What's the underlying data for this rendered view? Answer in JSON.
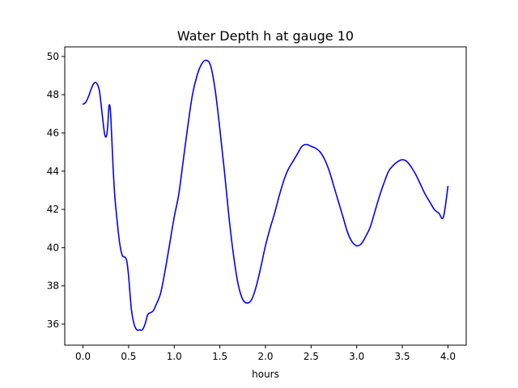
{
  "chart_data": {
    "type": "line",
    "title": "Water Depth h at gauge 10",
    "xlabel": "hours",
    "ylabel": "",
    "xlim": [
      -0.2,
      4.2
    ],
    "ylim": [
      34.9,
      50.5
    ],
    "xticks": [
      0.0,
      0.5,
      1.0,
      1.5,
      2.0,
      2.5,
      3.0,
      3.5,
      4.0
    ],
    "xtick_labels": [
      "0.0",
      "0.5",
      "1.0",
      "1.5",
      "2.0",
      "2.5",
      "3.0",
      "3.5",
      "4.0"
    ],
    "yticks": [
      36,
      38,
      40,
      42,
      44,
      46,
      48,
      50
    ],
    "ytick_labels": [
      "36",
      "38",
      "40",
      "42",
      "44",
      "46",
      "48",
      "50"
    ],
    "grid": false,
    "series": [
      {
        "color": "#0000ff",
        "x": [
          0.0,
          0.03,
          0.06,
          0.09,
          0.12,
          0.15,
          0.18,
          0.21,
          0.235,
          0.255,
          0.27,
          0.285,
          0.3,
          0.315,
          0.33,
          0.35,
          0.37,
          0.4,
          0.43,
          0.46,
          0.48,
          0.5,
          0.53,
          0.56,
          0.59,
          0.62,
          0.65,
          0.68,
          0.71,
          0.74,
          0.77,
          0.8,
          0.85,
          0.9,
          0.95,
          1.0,
          1.05,
          1.1,
          1.15,
          1.2,
          1.25,
          1.3,
          1.35,
          1.4,
          1.45,
          1.5,
          1.55,
          1.6,
          1.65,
          1.7,
          1.75,
          1.8,
          1.85,
          1.9,
          1.95,
          2.0,
          2.05,
          2.1,
          2.15,
          2.2,
          2.25,
          2.3,
          2.35,
          2.4,
          2.45,
          2.5,
          2.55,
          2.6,
          2.65,
          2.7,
          2.75,
          2.8,
          2.85,
          2.9,
          2.95,
          3.0,
          3.05,
          3.1,
          3.15,
          3.2,
          3.25,
          3.3,
          3.35,
          3.4,
          3.45,
          3.5,
          3.55,
          3.6,
          3.65,
          3.7,
          3.75,
          3.8,
          3.85,
          3.9,
          3.95,
          4.0
        ],
        "y": [
          47.5,
          47.6,
          47.9,
          48.3,
          48.6,
          48.6,
          48.2,
          47.0,
          46.0,
          45.8,
          46.3,
          47.4,
          47.2,
          45.8,
          44.2,
          42.6,
          41.6,
          40.3,
          39.6,
          39.5,
          39.3,
          38.5,
          36.8,
          36.0,
          35.7,
          35.7,
          35.7,
          36.0,
          36.5,
          36.6,
          36.7,
          37.0,
          37.6,
          38.8,
          40.2,
          41.6,
          42.8,
          44.6,
          46.4,
          48.0,
          49.0,
          49.6,
          49.8,
          49.5,
          48.2,
          46.2,
          44.0,
          41.6,
          39.6,
          38.1,
          37.3,
          37.1,
          37.3,
          38.0,
          39.0,
          40.1,
          41.0,
          41.8,
          42.7,
          43.5,
          44.1,
          44.5,
          44.9,
          45.3,
          45.4,
          45.3,
          45.2,
          45.0,
          44.6,
          44.0,
          43.2,
          42.4,
          41.6,
          40.8,
          40.3,
          40.1,
          40.2,
          40.6,
          41.1,
          41.9,
          42.7,
          43.4,
          44.0,
          44.3,
          44.5,
          44.6,
          44.5,
          44.2,
          43.8,
          43.3,
          42.8,
          42.4,
          42.0,
          41.8,
          41.6,
          43.2
        ]
      }
    ]
  }
}
